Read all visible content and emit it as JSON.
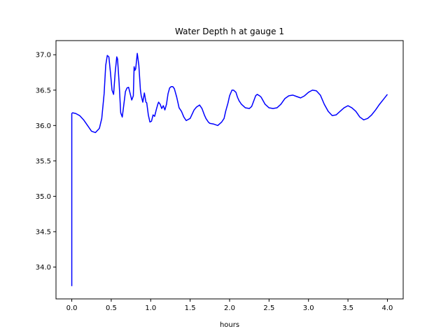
{
  "chart_data": {
    "type": "line",
    "title": "Water Depth h at gauge 1",
    "xlabel": "hours",
    "ylabel": "",
    "xlim": [
      -0.2,
      4.2
    ],
    "ylim": [
      33.55,
      37.2
    ],
    "xticks": [
      0.0,
      0.5,
      1.0,
      1.5,
      2.0,
      2.5,
      3.0,
      3.5,
      4.0
    ],
    "yticks": [
      34.0,
      34.5,
      35.0,
      35.5,
      36.0,
      36.5,
      37.0
    ],
    "xtick_labels": [
      "0.0",
      "0.5",
      "1.0",
      "1.5",
      "2.0",
      "2.5",
      "3.0",
      "3.5",
      "4.0"
    ],
    "ytick_labels": [
      "34.0",
      "34.5",
      "35.0",
      "35.5",
      "36.0",
      "36.5",
      "37.0"
    ],
    "grid": false,
    "line_color": "#0000ff",
    "series": [
      {
        "name": "",
        "x": [
          0.0,
          0.0,
          0.01,
          0.05,
          0.1,
          0.15,
          0.2,
          0.25,
          0.3,
          0.35,
          0.38,
          0.41,
          0.43,
          0.45,
          0.47,
          0.49,
          0.51,
          0.53,
          0.55,
          0.57,
          0.58,
          0.6,
          0.62,
          0.64,
          0.66,
          0.68,
          0.7,
          0.72,
          0.74,
          0.76,
          0.78,
          0.79,
          0.8,
          0.81,
          0.83,
          0.85,
          0.87,
          0.88,
          0.9,
          0.92,
          0.94,
          0.95,
          0.97,
          0.99,
          1.01,
          1.03,
          1.05,
          1.07,
          1.09,
          1.1,
          1.12,
          1.14,
          1.16,
          1.18,
          1.2,
          1.22,
          1.24,
          1.26,
          1.28,
          1.3,
          1.33,
          1.36,
          1.39,
          1.42,
          1.45,
          1.5,
          1.55,
          1.58,
          1.62,
          1.65,
          1.68,
          1.7,
          1.73,
          1.75,
          1.8,
          1.85,
          1.9,
          1.93,
          1.95,
          1.98,
          2.0,
          2.03,
          2.05,
          2.08,
          2.1,
          2.12,
          2.15,
          2.2,
          2.25,
          2.28,
          2.3,
          2.33,
          2.35,
          2.38,
          2.4,
          2.45,
          2.5,
          2.55,
          2.6,
          2.65,
          2.7,
          2.75,
          2.8,
          2.85,
          2.9,
          2.95,
          3.0,
          3.05,
          3.1,
          3.15,
          3.2,
          3.25,
          3.3,
          3.35,
          3.4,
          3.45,
          3.5,
          3.55,
          3.6,
          3.65,
          3.7,
          3.75,
          3.8,
          3.85,
          3.9,
          3.95,
          4.0
        ],
        "y": [
          33.73,
          36.17,
          36.18,
          36.17,
          36.14,
          36.08,
          36.0,
          35.92,
          35.9,
          35.96,
          36.1,
          36.45,
          36.85,
          36.99,
          36.97,
          36.75,
          36.5,
          36.44,
          36.75,
          36.97,
          36.94,
          36.6,
          36.18,
          36.12,
          36.3,
          36.48,
          36.53,
          36.54,
          36.45,
          36.36,
          36.42,
          36.83,
          36.78,
          36.8,
          37.02,
          36.85,
          36.5,
          36.42,
          36.33,
          36.46,
          36.33,
          36.32,
          36.15,
          36.05,
          36.06,
          36.15,
          36.13,
          36.22,
          36.3,
          36.33,
          36.3,
          36.24,
          36.28,
          36.22,
          36.3,
          36.45,
          36.53,
          36.55,
          36.55,
          36.52,
          36.4,
          36.25,
          36.2,
          36.12,
          36.07,
          36.1,
          36.22,
          36.26,
          36.29,
          36.24,
          36.15,
          36.1,
          36.05,
          36.03,
          36.02,
          36.0,
          36.05,
          36.1,
          36.2,
          36.32,
          36.42,
          36.5,
          36.5,
          36.47,
          36.4,
          36.35,
          36.3,
          36.25,
          36.24,
          36.27,
          36.33,
          36.42,
          36.44,
          36.42,
          36.4,
          36.3,
          36.25,
          36.24,
          36.25,
          36.3,
          36.38,
          36.42,
          36.43,
          36.41,
          36.39,
          36.42,
          36.47,
          36.5,
          36.49,
          36.43,
          36.3,
          36.2,
          36.14,
          36.15,
          36.2,
          36.25,
          36.28,
          36.25,
          36.2,
          36.12,
          36.08,
          36.1,
          36.15,
          36.22,
          36.3,
          36.37,
          36.44
        ]
      }
    ]
  }
}
